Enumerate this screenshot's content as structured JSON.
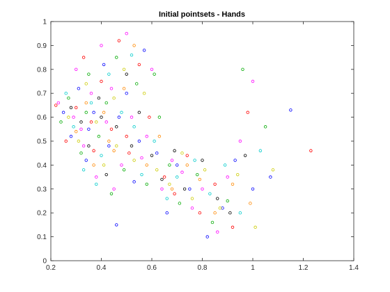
{
  "chart_data": {
    "type": "scatter",
    "title": "Initial pointsets - Hands",
    "xlabel": "",
    "ylabel": "",
    "xlim": [
      0.2,
      1.4
    ],
    "ylim": [
      0,
      1
    ],
    "xticks": [
      0.2,
      0.4,
      0.6,
      0.8,
      1,
      1.2,
      1.4
    ],
    "xtick_labels": [
      "0.2",
      "0.4",
      "0.6",
      "0.8",
      "1",
      "1.2",
      "1.4"
    ],
    "yticks": [
      0,
      0.1,
      0.2,
      0.3,
      0.4,
      0.5,
      0.6,
      0.7,
      0.8,
      0.9,
      1
    ],
    "ytick_labels": [
      "0",
      "0.1",
      "0.2",
      "0.3",
      "0.4",
      "0.5",
      "0.6",
      "0.7",
      "0.8",
      "0.9",
      "1"
    ],
    "grid": false,
    "box": true,
    "marker": "open-circle",
    "series_colors": [
      "#ff00ff",
      "#0000ff",
      "#00aa00",
      "#ff0000",
      "#00cccc",
      "#cccc00",
      "#000000",
      "#ff8800"
    ],
    "series": [
      {
        "values": [
          [
            0.23,
            0.66
          ],
          [
            0.29,
            0.6
          ],
          [
            0.3,
            0.8
          ],
          [
            0.33,
            0.48
          ],
          [
            0.36,
            0.7
          ],
          [
            0.38,
            0.35
          ],
          [
            0.4,
            0.9
          ],
          [
            0.42,
            0.58
          ],
          [
            0.45,
            0.3
          ],
          [
            0.5,
            0.95
          ],
          [
            0.52,
            0.6
          ],
          [
            0.56,
            0.43
          ],
          [
            0.6,
            0.8
          ],
          [
            0.64,
            0.3
          ],
          [
            0.68,
            0.42
          ],
          [
            0.72,
            0.37
          ],
          [
            0.76,
            0.22
          ],
          [
            0.8,
            0.3
          ],
          [
            0.86,
            0.12
          ],
          [
            0.9,
            0.35
          ],
          [
            0.95,
            0.5
          ],
          [
            1.0,
            0.75
          ],
          [
            0.32,
            0.55
          ],
          [
            0.44,
            0.72
          ],
          [
            0.48,
            0.4
          ],
          [
            0.58,
            0.52
          ]
        ]
      },
      {
        "values": [
          [
            0.25,
            0.62
          ],
          [
            0.28,
            0.52
          ],
          [
            0.31,
            0.72
          ],
          [
            0.34,
            0.42
          ],
          [
            0.37,
            0.62
          ],
          [
            0.41,
            0.82
          ],
          [
            0.43,
            0.48
          ],
          [
            0.46,
            0.15
          ],
          [
            0.5,
            0.7
          ],
          [
            0.53,
            0.33
          ],
          [
            0.57,
            0.88
          ],
          [
            0.62,
            0.45
          ],
          [
            0.66,
            0.2
          ],
          [
            0.7,
            0.4
          ],
          [
            0.75,
            0.3
          ],
          [
            0.82,
            0.1
          ],
          [
            0.88,
            0.22
          ],
          [
            0.93,
            0.42
          ],
          [
            1.0,
            0.3
          ],
          [
            1.07,
            0.35
          ],
          [
            1.15,
            0.63
          ],
          [
            0.35,
            0.55
          ],
          [
            0.47,
            0.6
          ],
          [
            0.55,
            0.5
          ]
        ]
      },
      {
        "values": [
          [
            0.24,
            0.58
          ],
          [
            0.27,
            0.68
          ],
          [
            0.32,
            0.45
          ],
          [
            0.35,
            0.78
          ],
          [
            0.39,
            0.52
          ],
          [
            0.42,
            0.66
          ],
          [
            0.46,
            0.85
          ],
          [
            0.49,
            0.38
          ],
          [
            0.54,
            0.74
          ],
          [
            0.58,
            0.32
          ],
          [
            0.63,
            0.6
          ],
          [
            0.67,
            0.4
          ],
          [
            0.71,
            0.24
          ],
          [
            0.78,
            0.36
          ],
          [
            0.84,
            0.16
          ],
          [
            0.9,
            0.25
          ],
          [
            0.96,
            0.8
          ],
          [
            1.05,
            0.56
          ],
          [
            0.34,
            0.62
          ],
          [
            0.44,
            0.28
          ],
          [
            0.61,
            0.78
          ]
        ]
      },
      {
        "values": [
          [
            0.22,
            0.65
          ],
          [
            0.26,
            0.5
          ],
          [
            0.3,
            0.64
          ],
          [
            0.33,
            0.85
          ],
          [
            0.37,
            0.46
          ],
          [
            0.4,
            0.75
          ],
          [
            0.44,
            0.55
          ],
          [
            0.47,
            0.92
          ],
          [
            0.51,
            0.45
          ],
          [
            0.55,
            0.82
          ],
          [
            0.59,
            0.6
          ],
          [
            0.65,
            0.35
          ],
          [
            0.69,
            0.28
          ],
          [
            0.74,
            0.44
          ],
          [
            0.79,
            0.2
          ],
          [
            0.85,
            0.32
          ],
          [
            0.92,
            0.14
          ],
          [
            0.98,
            0.62
          ],
          [
            1.23,
            0.46
          ],
          [
            0.36,
            0.58
          ],
          [
            0.5,
            0.52
          ]
        ]
      },
      {
        "values": [
          [
            0.26,
            0.7
          ],
          [
            0.29,
            0.56
          ],
          [
            0.33,
            0.38
          ],
          [
            0.36,
            0.66
          ],
          [
            0.4,
            0.44
          ],
          [
            0.43,
            0.78
          ],
          [
            0.48,
            0.62
          ],
          [
            0.52,
            0.86
          ],
          [
            0.56,
            0.36
          ],
          [
            0.61,
            0.5
          ],
          [
            0.66,
            0.26
          ],
          [
            0.7,
            0.35
          ],
          [
            0.77,
            0.42
          ],
          [
            0.83,
            0.28
          ],
          [
            0.89,
            0.4
          ],
          [
            0.95,
            0.2
          ],
          [
            1.03,
            0.46
          ],
          [
            0.38,
            0.32
          ],
          [
            0.53,
            0.56
          ]
        ]
      },
      {
        "values": [
          [
            0.27,
            0.6
          ],
          [
            0.31,
            0.5
          ],
          [
            0.34,
            0.74
          ],
          [
            0.38,
            0.58
          ],
          [
            0.41,
            0.4
          ],
          [
            0.45,
            0.68
          ],
          [
            0.49,
            0.8
          ],
          [
            0.53,
            0.42
          ],
          [
            0.57,
            0.7
          ],
          [
            0.62,
            0.38
          ],
          [
            0.67,
            0.32
          ],
          [
            0.72,
            0.45
          ],
          [
            0.76,
            0.26
          ],
          [
            0.81,
            0.38
          ],
          [
            0.87,
            0.22
          ],
          [
            0.94,
            0.36
          ],
          [
            1.01,
            0.14
          ],
          [
            1.08,
            0.38
          ],
          [
            0.46,
            0.48
          ]
        ]
      },
      {
        "values": [
          [
            0.28,
            0.64
          ],
          [
            0.32,
            0.58
          ],
          [
            0.35,
            0.48
          ],
          [
            0.39,
            0.68
          ],
          [
            0.42,
            0.36
          ],
          [
            0.46,
            0.56
          ],
          [
            0.5,
            0.78
          ],
          [
            0.55,
            0.62
          ],
          [
            0.6,
            0.44
          ],
          [
            0.64,
            0.34
          ],
          [
            0.69,
            0.46
          ],
          [
            0.73,
            0.3
          ],
          [
            0.8,
            0.42
          ],
          [
            0.86,
            0.26
          ],
          [
            0.91,
            0.2
          ],
          [
            0.97,
            0.44
          ],
          [
            0.4,
            0.6
          ],
          [
            0.52,
            0.48
          ]
        ]
      },
      {
        "values": [
          [
            0.3,
            0.54
          ],
          [
            0.34,
            0.66
          ],
          [
            0.37,
            0.4
          ],
          [
            0.41,
            0.62
          ],
          [
            0.45,
            0.46
          ],
          [
            0.49,
            0.72
          ],
          [
            0.53,
            0.9
          ],
          [
            0.58,
            0.4
          ],
          [
            0.63,
            0.52
          ],
          [
            0.68,
            0.3
          ],
          [
            0.74,
            0.4
          ],
          [
            0.79,
            0.34
          ],
          [
            0.85,
            0.2
          ],
          [
            0.92,
            0.32
          ],
          [
            0.99,
            0.24
          ],
          [
            0.43,
            0.5
          ]
        ]
      }
    ]
  }
}
